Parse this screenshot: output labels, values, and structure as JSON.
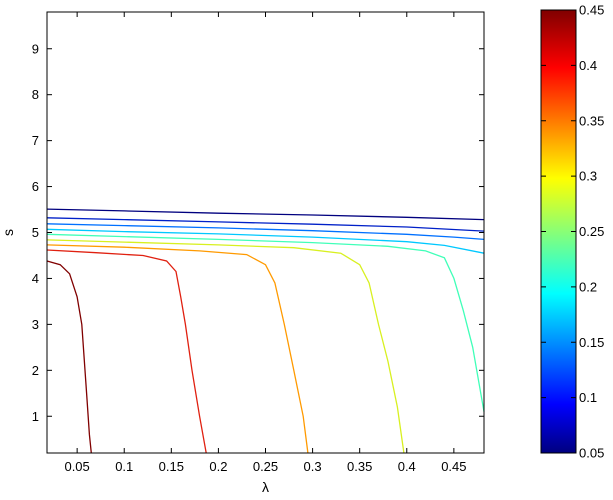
{
  "chart_data": {
    "type": "line",
    "subtype": "contour",
    "title": "",
    "xlabel": "λ",
    "ylabel": "s",
    "xlim": [
      0.018,
      0.482
    ],
    "ylim": [
      0.2,
      9.8
    ],
    "xticks": [
      "0.05",
      "0.1",
      "0.15",
      "0.2",
      "0.25",
      "0.3",
      "0.35",
      "0.4",
      "0.45"
    ],
    "yticks": [
      "1",
      "2",
      "3",
      "4",
      "5",
      "6",
      "7",
      "8",
      "9"
    ],
    "grid": false,
    "colorbar": {
      "colormap": "jet",
      "range": [
        0.05,
        0.45
      ],
      "ticks": [
        "0.05",
        "0.1",
        "0.15",
        "0.2",
        "0.25",
        "0.3",
        "0.35",
        "0.4",
        "0.45"
      ]
    },
    "series": [
      {
        "level": 0.05,
        "color": "#00007f",
        "points": [
          [
            0.018,
            5.51
          ],
          [
            0.1,
            5.47
          ],
          [
            0.2,
            5.42
          ],
          [
            0.3,
            5.38
          ],
          [
            0.4,
            5.33
          ],
          [
            0.482,
            5.28
          ]
        ]
      },
      {
        "level": 0.1,
        "color": "#0020c8",
        "points": [
          [
            0.018,
            5.32
          ],
          [
            0.1,
            5.28
          ],
          [
            0.2,
            5.23
          ],
          [
            0.3,
            5.18
          ],
          [
            0.4,
            5.12
          ],
          [
            0.482,
            5.03
          ]
        ]
      },
      {
        "level": 0.15,
        "color": "#0070ff",
        "points": [
          [
            0.018,
            5.19
          ],
          [
            0.1,
            5.15
          ],
          [
            0.2,
            5.1
          ],
          [
            0.3,
            5.04
          ],
          [
            0.4,
            4.96
          ],
          [
            0.45,
            4.9
          ],
          [
            0.482,
            4.85
          ]
        ]
      },
      {
        "level": 0.2,
        "color": "#00c8ff",
        "points": [
          [
            0.018,
            5.07
          ],
          [
            0.1,
            5.02
          ],
          [
            0.2,
            4.97
          ],
          [
            0.3,
            4.9
          ],
          [
            0.4,
            4.8
          ],
          [
            0.44,
            4.72
          ],
          [
            0.482,
            4.55
          ]
        ]
      },
      {
        "level": 0.25,
        "color": "#40ffb8",
        "points": [
          [
            0.018,
            4.96
          ],
          [
            0.1,
            4.91
          ],
          [
            0.2,
            4.85
          ],
          [
            0.3,
            4.78
          ],
          [
            0.38,
            4.7
          ],
          [
            0.42,
            4.6
          ],
          [
            0.44,
            4.45
          ],
          [
            0.45,
            4.0
          ],
          [
            0.46,
            3.3
          ],
          [
            0.47,
            2.5
          ],
          [
            0.482,
            1.1
          ]
        ]
      },
      {
        "level": 0.3,
        "color": "#d8f020",
        "points": [
          [
            0.018,
            4.84
          ],
          [
            0.1,
            4.79
          ],
          [
            0.2,
            4.73
          ],
          [
            0.28,
            4.67
          ],
          [
            0.33,
            4.55
          ],
          [
            0.35,
            4.3
          ],
          [
            0.36,
            3.9
          ],
          [
            0.37,
            3.0
          ],
          [
            0.38,
            2.2
          ],
          [
            0.39,
            1.2
          ],
          [
            0.397,
            0.2
          ]
        ]
      },
      {
        "level": 0.35,
        "color": "#ff9a00",
        "points": [
          [
            0.018,
            4.73
          ],
          [
            0.1,
            4.68
          ],
          [
            0.18,
            4.6
          ],
          [
            0.23,
            4.52
          ],
          [
            0.25,
            4.3
          ],
          [
            0.26,
            3.9
          ],
          [
            0.27,
            3.0
          ],
          [
            0.28,
            2.0
          ],
          [
            0.29,
            1.0
          ],
          [
            0.295,
            0.2
          ]
        ]
      },
      {
        "level": 0.4,
        "color": "#e02010",
        "points": [
          [
            0.018,
            4.62
          ],
          [
            0.07,
            4.56
          ],
          [
            0.12,
            4.5
          ],
          [
            0.145,
            4.38
          ],
          [
            0.155,
            4.15
          ],
          [
            0.16,
            3.6
          ],
          [
            0.165,
            3.0
          ],
          [
            0.172,
            2.0
          ],
          [
            0.18,
            1.0
          ],
          [
            0.187,
            0.2
          ]
        ]
      },
      {
        "level": 0.45,
        "color": "#800000",
        "points": [
          [
            0.018,
            4.38
          ],
          [
            0.032,
            4.3
          ],
          [
            0.042,
            4.1
          ],
          [
            0.05,
            3.6
          ],
          [
            0.055,
            3.0
          ],
          [
            0.06,
            1.5
          ],
          [
            0.063,
            0.6
          ],
          [
            0.065,
            0.2
          ]
        ]
      }
    ]
  }
}
